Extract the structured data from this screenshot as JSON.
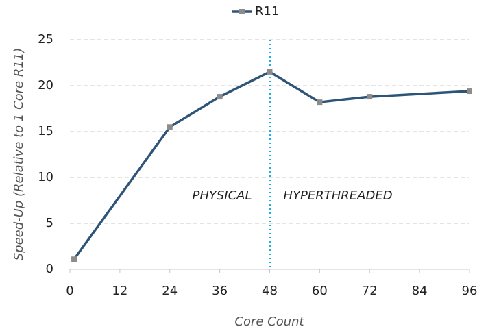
{
  "chart_data": {
    "type": "line",
    "x_label": "Core Count",
    "y_label": "Speed-Up (Relative to 1 Core  R11)",
    "x": [
      1,
      24,
      36,
      48,
      60,
      72,
      96
    ],
    "series": [
      {
        "name": "R11",
        "color": "#2e5478",
        "marker_color": "#8c8c8c",
        "values": [
          1.1,
          15.5,
          18.8,
          21.5,
          18.2,
          18.8,
          19.4
        ]
      }
    ],
    "xlim": [
      0,
      96
    ],
    "xticks": [
      0,
      12,
      24,
      36,
      48,
      60,
      72,
      84,
      96
    ],
    "ylim": [
      0,
      25
    ],
    "yticks": [
      0,
      5,
      10,
      15,
      20,
      25
    ],
    "grid": true,
    "legend": "top",
    "vline": {
      "x": 48,
      "color": "#1ab0e0"
    },
    "annotations": [
      {
        "text": "PHYSICAL",
        "color": "#777777"
      },
      {
        "text": "HYPERTHREADED",
        "color": "#1ab0e0"
      }
    ]
  }
}
